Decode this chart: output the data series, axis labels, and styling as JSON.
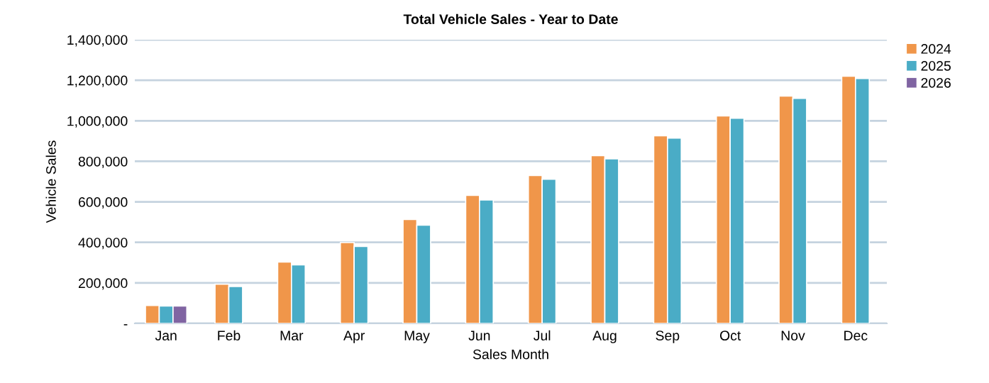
{
  "chart_data": {
    "type": "bar",
    "title": "Total Vehicle Sales - Year to Date",
    "xlabel": "Sales Month",
    "ylabel": "Vehicle Sales",
    "categories": [
      "Jan",
      "Feb",
      "Mar",
      "Apr",
      "May",
      "Jun",
      "Jul",
      "Aug",
      "Sep",
      "Oct",
      "Nov",
      "Dec"
    ],
    "series": [
      {
        "name": "2024",
        "color": "#f0964a",
        "values": [
          89000,
          194000,
          303000,
          399000,
          513000,
          632000,
          730000,
          828000,
          926000,
          1024000,
          1122000,
          1220000
        ]
      },
      {
        "name": "2025",
        "color": "#4aacc6",
        "values": [
          86000,
          182000,
          289000,
          380000,
          485000,
          609000,
          712000,
          812000,
          915000,
          1013000,
          1111000,
          1209000
        ]
      },
      {
        "name": "2026",
        "color": "#8064a2",
        "values": [
          86000,
          null,
          null,
          null,
          null,
          null,
          null,
          null,
          null,
          null,
          null,
          null
        ]
      }
    ],
    "ylim": [
      0,
      1400000
    ],
    "yticks": [
      {
        "value": 0,
        "label": "-"
      },
      {
        "value": 200000,
        "label": "200,000"
      },
      {
        "value": 400000,
        "label": "400,000"
      },
      {
        "value": 600000,
        "label": "600,000"
      },
      {
        "value": 800000,
        "label": "800,000"
      },
      {
        "value": 1000000,
        "label": "1,000,000"
      },
      {
        "value": 1200000,
        "label": "1,200,000"
      },
      {
        "value": 1400000,
        "label": "1,400,000"
      }
    ],
    "grid": "y",
    "legend": "top right"
  }
}
